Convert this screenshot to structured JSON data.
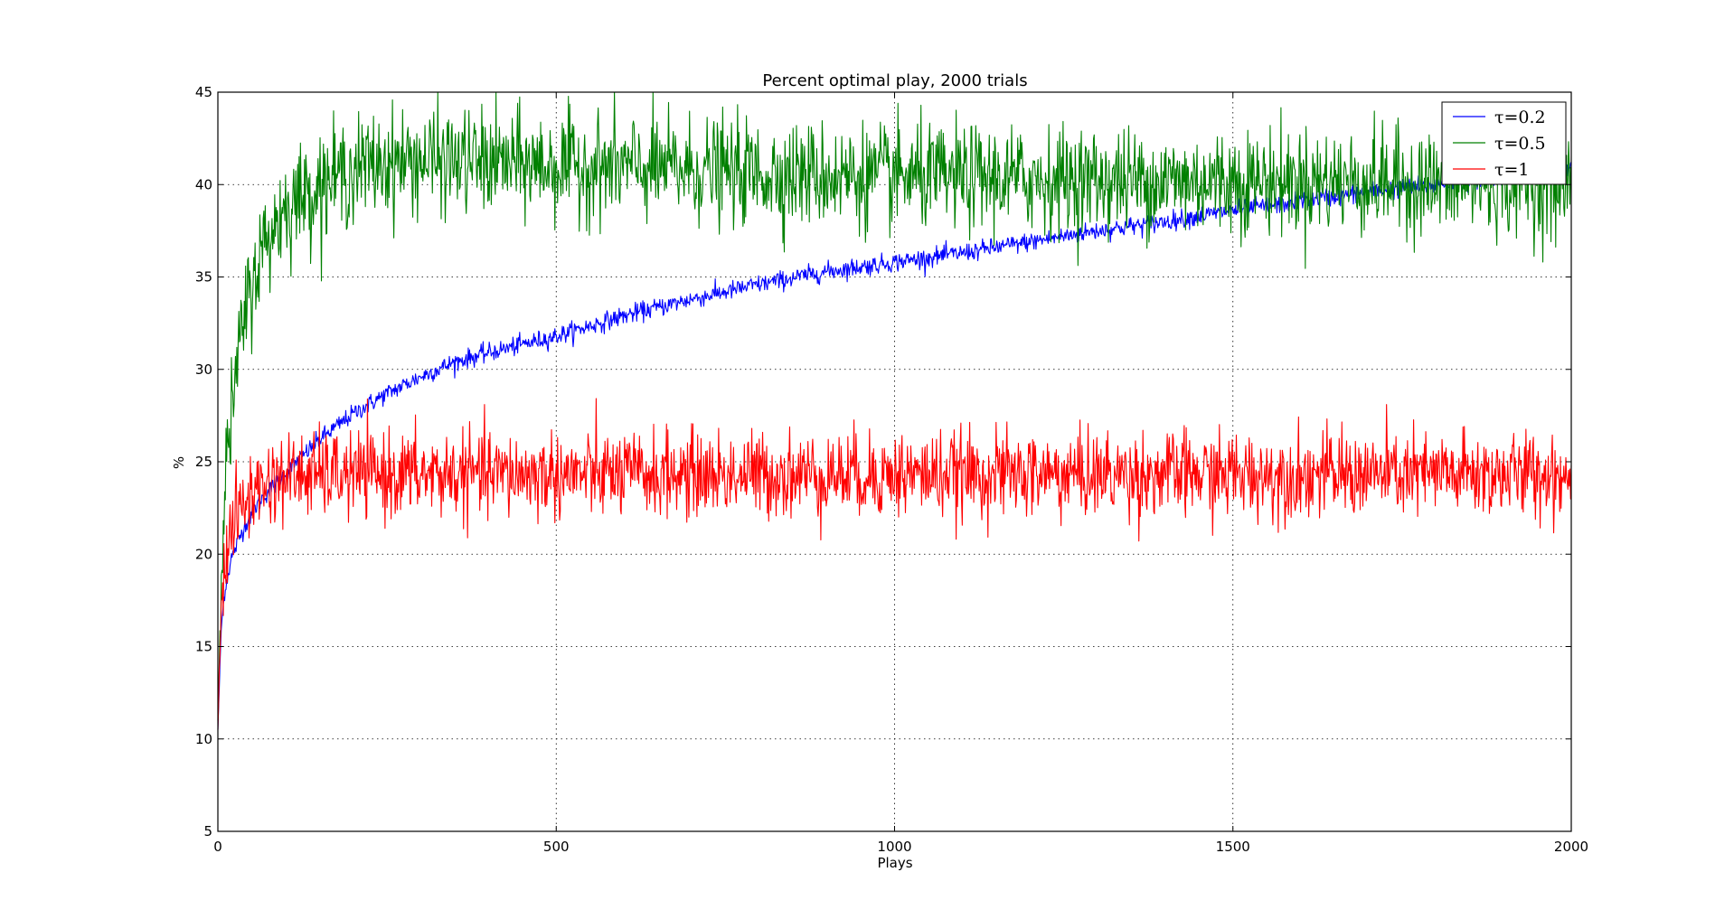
{
  "chart_data": {
    "type": "line",
    "title": "Percent optimal play, 2000 trials",
    "xlabel": "Plays",
    "ylabel": "%",
    "xlim": [
      0,
      2000
    ],
    "ylim": [
      5,
      45
    ],
    "xticks": [
      "0",
      "500",
      "1000",
      "1500",
      "2000"
    ],
    "yticks": [
      "5",
      "10",
      "15",
      "20",
      "25",
      "30",
      "35",
      "40",
      "45"
    ],
    "grid": true,
    "legend_position": "top-right",
    "series": [
      {
        "name": "τ=0.2",
        "color": "#0000ff",
        "x": [
          0,
          5,
          10,
          20,
          40,
          60,
          80,
          100,
          150,
          200,
          250,
          300,
          350,
          400,
          500,
          600,
          700,
          800,
          900,
          1000,
          1100,
          1200,
          1300,
          1400,
          1500,
          1600,
          1700,
          1800,
          1900,
          2000
        ],
        "values": [
          10.5,
          16.0,
          18.0,
          19.8,
          21.6,
          22.8,
          23.6,
          24.4,
          26.2,
          27.6,
          28.7,
          29.6,
          30.4,
          30.9,
          31.8,
          32.9,
          33.8,
          34.6,
          35.3,
          35.8,
          36.3,
          36.9,
          37.5,
          38.0,
          38.6,
          39.1,
          39.6,
          40.0,
          40.5,
          41.0
        ],
        "noise": 0.25
      },
      {
        "name": "τ=0.5",
        "color": "#008000",
        "x": [
          0,
          5,
          10,
          20,
          30,
          40,
          60,
          80,
          100,
          150,
          200,
          250,
          300,
          400,
          500,
          600,
          700,
          800,
          900,
          1000,
          1200,
          1400,
          1600,
          1800,
          2000
        ],
        "values": [
          11.0,
          19.5,
          23.5,
          27.5,
          30.5,
          33.0,
          36.0,
          37.5,
          38.8,
          40.0,
          40.8,
          41.2,
          41.3,
          41.2,
          41.0,
          40.9,
          40.8,
          40.6,
          40.5,
          40.4,
          40.3,
          40.2,
          40.2,
          40.1,
          40.0
        ],
        "noise": 1.4
      },
      {
        "name": "τ=1",
        "color": "#ff0000",
        "x": [
          0,
          5,
          10,
          20,
          40,
          60,
          80,
          100,
          150,
          200,
          300,
          500,
          1000,
          1500,
          2000
        ],
        "values": [
          10.5,
          17.5,
          19.5,
          21.5,
          22.8,
          23.6,
          24.0,
          24.2,
          24.3,
          24.3,
          24.3,
          24.3,
          24.3,
          24.3,
          24.3
        ],
        "noise": 1.15
      }
    ]
  }
}
